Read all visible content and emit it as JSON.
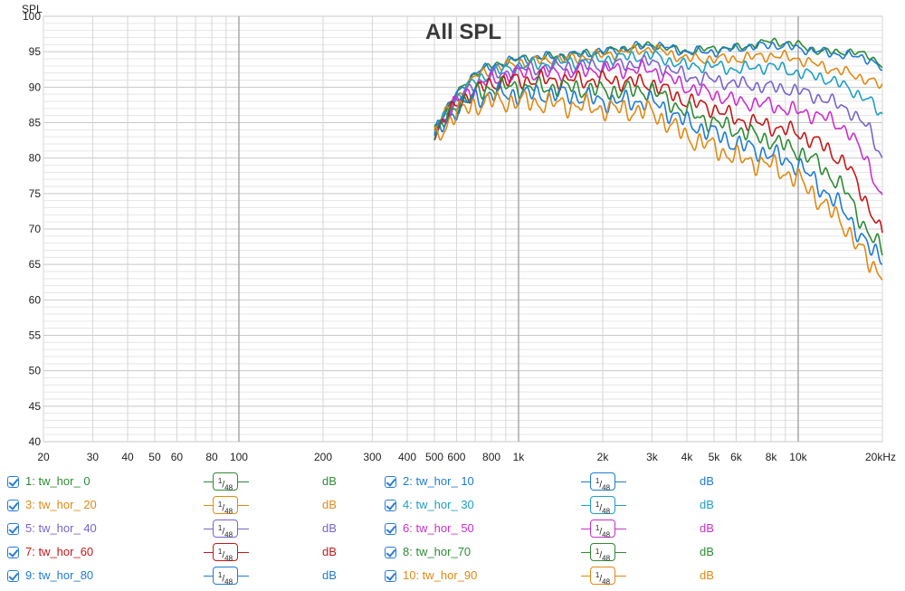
{
  "chart_data": {
    "type": "line",
    "title": "All SPL",
    "ylabel": "SPL",
    "xlabel": "",
    "xscale": "log",
    "xlim": [
      20,
      20000
    ],
    "ylim": [
      40,
      100
    ],
    "ytick_labels": [
      "100",
      "95",
      "90",
      "85",
      "80",
      "75",
      "70",
      "65",
      "60",
      "55",
      "50",
      "45",
      "40"
    ],
    "xtick_labels": [
      {
        "v": 20,
        "label": "20"
      },
      {
        "v": 30,
        "label": "30"
      },
      {
        "v": 40,
        "label": "40"
      },
      {
        "v": 50,
        "label": "50"
      },
      {
        "v": 60,
        "label": "60"
      },
      {
        "v": 80,
        "label": "80"
      },
      {
        "v": 100,
        "label": "100"
      },
      {
        "v": 200,
        "label": "200"
      },
      {
        "v": 300,
        "label": "300"
      },
      {
        "v": 400,
        "label": "400"
      },
      {
        "v": 500,
        "label": "500"
      },
      {
        "v": 600,
        "label": "600"
      },
      {
        "v": 800,
        "label": "800"
      },
      {
        "v": 1000,
        "label": "1k"
      },
      {
        "v": 2000,
        "label": "2k"
      },
      {
        "v": 3000,
        "label": "3k"
      },
      {
        "v": 4000,
        "label": "4k"
      },
      {
        "v": 5000,
        "label": "5k"
      },
      {
        "v": 6000,
        "label": "6k"
      },
      {
        "v": 8000,
        "label": "8k"
      },
      {
        "v": 10000,
        "label": "10k"
      },
      {
        "v": 20000,
        "label": "20kHz"
      }
    ],
    "grid": true,
    "legend_position": "bottom",
    "x": [
      500,
      600,
      700,
      800,
      1000,
      1500,
      2000,
      3000,
      4000,
      5000,
      6000,
      8000,
      10000,
      12000,
      15000,
      18000,
      20000
    ],
    "series": [
      {
        "name": "1: tw_hor_ 0",
        "color": "#2e8b34",
        "values": [
          84,
          89,
          92,
          93,
          94,
          94.5,
          95,
          96,
          95,
          95.5,
          95.5,
          96.5,
          96,
          95,
          95,
          94.5,
          93
        ]
      },
      {
        "name": "2: tw_hor_ 10",
        "color": "#1f7bd2",
        "values": [
          84,
          89,
          92,
          93,
          94,
          94.5,
          95,
          96,
          95,
          95,
          95.5,
          96,
          95.5,
          95,
          94.5,
          94,
          92.5
        ]
      },
      {
        "name": "3: tw_hor_ 20",
        "color": "#e08a14",
        "values": [
          84,
          88.5,
          91.5,
          92.5,
          93.5,
          94,
          94.5,
          95.5,
          94,
          94,
          94,
          94.5,
          94,
          93,
          92,
          91,
          90
        ]
      },
      {
        "name": "4: tw_hor_ 30",
        "color": "#1ea0c4",
        "values": [
          83.5,
          88.5,
          91,
          92,
          93,
          93.5,
          94,
          94.5,
          93,
          93,
          92.5,
          93,
          92,
          91.5,
          90,
          88,
          86
        ]
      },
      {
        "name": "5: tw_hor_ 40",
        "color": "#7a63cc",
        "values": [
          83.5,
          88,
          90.5,
          91.5,
          92.5,
          93,
          93,
          93.5,
          91.5,
          91,
          90.5,
          90,
          89.5,
          88.5,
          87,
          84,
          80
        ]
      },
      {
        "name": "6: tw_hor_ 50",
        "color": "#cc2fcc",
        "values": [
          83.5,
          88,
          90,
          91,
          92,
          92,
          92.5,
          92.5,
          90,
          89,
          88,
          87.5,
          86.5,
          86,
          84,
          79,
          74
        ]
      },
      {
        "name": "7: tw_hor_60",
        "color": "#c41818",
        "values": [
          83.5,
          87.5,
          89.5,
          90.5,
          91,
          91,
          91,
          90.5,
          88,
          87,
          85.5,
          84.5,
          83.5,
          82,
          79,
          73,
          69
        ]
      },
      {
        "name": "8: tw_hor_70",
        "color": "#2e8b34",
        "values": [
          83,
          87.5,
          89,
          90,
          90,
          90,
          89.5,
          89.5,
          86.5,
          85,
          84,
          82.5,
          81,
          79,
          75,
          69,
          67
        ]
      },
      {
        "name": "9: tw_hor_80",
        "color": "#1f7bd2",
        "values": [
          83,
          87,
          88.5,
          89,
          89,
          89,
          88,
          88,
          85,
          83.5,
          82,
          80.5,
          79,
          76,
          72,
          67,
          66
        ]
      },
      {
        "name": "10: tw_hor_90",
        "color": "#e08a14",
        "values": [
          82.5,
          86.5,
          87.5,
          88,
          88,
          87.5,
          87,
          86.5,
          83,
          81.5,
          80,
          79,
          77,
          74,
          70,
          65,
          64
        ]
      }
    ]
  },
  "legend": {
    "smoothing_label_num": "1",
    "smoothing_label_den": "48",
    "unit": "dB"
  }
}
